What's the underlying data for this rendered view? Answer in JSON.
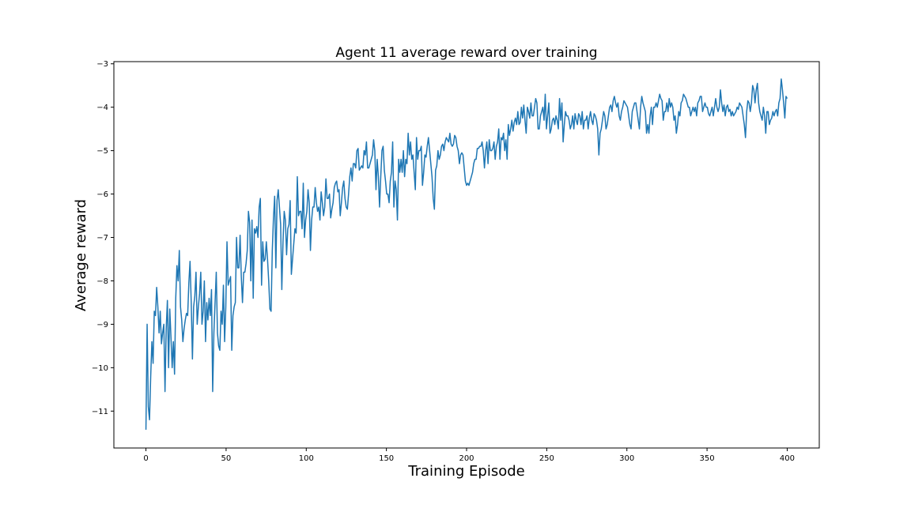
{
  "chart_data": {
    "type": "line",
    "title": "Agent 11 average reward over training",
    "xlabel": "Training Episode",
    "ylabel": "Average reward",
    "xlim": [
      -20,
      420
    ],
    "ylim": [
      -11.85,
      -2.95
    ],
    "xticks": [
      0,
      50,
      100,
      150,
      200,
      250,
      300,
      350,
      400
    ],
    "yticks": [
      -11,
      -10,
      -9,
      -8,
      -7,
      -6,
      -5,
      -4,
      -3
    ],
    "xtick_labels": [
      "0",
      "50",
      "100",
      "150",
      "200",
      "250",
      "300",
      "350",
      "400"
    ],
    "ytick_labels": [
      "−11",
      "−10",
      "−9",
      "−8",
      "−7",
      "−6",
      "−5",
      "−4",
      "−3"
    ],
    "grid": false,
    "color": "#1f77b4",
    "series": [
      {
        "values": [
          -11.43,
          -9.0,
          -10.9,
          -11.2,
          -10.2,
          -9.4,
          -9.9,
          -8.7,
          -8.8,
          -8.15,
          -8.6,
          -9.2,
          -8.7,
          -9.45,
          -9.2,
          -9.0,
          -10.55,
          -9.1,
          -8.45,
          -10.0,
          -8.65,
          -9.3,
          -10.0,
          -9.4,
          -10.15,
          -8.4,
          -7.65,
          -8.0,
          -7.3,
          -8.6,
          -8.9,
          -9.4,
          -9.1,
          -8.9,
          -8.75,
          -8.8,
          -8.05,
          -7.55,
          -8.5,
          -9.8,
          -8.6,
          -8.35,
          -7.8,
          -9.0,
          -8.6,
          -8.3,
          -7.8,
          -9.0,
          -8.7,
          -8.0,
          -9.4,
          -8.5,
          -8.9,
          -8.4,
          -8.8,
          -8.2,
          -10.55,
          -9.2,
          -8.5,
          -7.8,
          -9.2,
          -9.5,
          -9.6,
          -8.7,
          -9.0,
          -8.1,
          -9.4,
          -8.6,
          -7.1,
          -8.1,
          -8.0,
          -7.9,
          -9.6,
          -8.8,
          -8.6,
          -8.5,
          -7.0,
          -7.7,
          -7.7,
          -6.95,
          -7.9,
          -8.5,
          -7.8,
          -7.8,
          -7.6,
          -7.3,
          -6.4,
          -6.65,
          -8.0,
          -6.6,
          -8.4,
          -6.8,
          -6.9,
          -6.75,
          -7.0,
          -6.3,
          -6.1,
          -8.1,
          -7.1,
          -7.55,
          -7.5,
          -7.1,
          -7.5,
          -8.0,
          -8.65,
          -8.7,
          -7.3,
          -6.55,
          -6.05,
          -7.7,
          -6.15,
          -5.9,
          -6.3,
          -6.7,
          -8.2,
          -7.1,
          -6.4,
          -6.6,
          -7.4,
          -6.8,
          -6.7,
          -6.15,
          -7.85,
          -7.5,
          -7.15,
          -6.8,
          -6.9,
          -5.6,
          -6.5,
          -6.4,
          -6.4,
          -6.8,
          -5.75,
          -7.0,
          -6.6,
          -6.4,
          -5.9,
          -6.2,
          -7.3,
          -6.6,
          -6.3,
          -6.3,
          -5.85,
          -6.2,
          -6.4,
          -6.3,
          -6.6,
          -5.95,
          -6.2,
          -6.5,
          -6.3,
          -5.65,
          -6.1,
          -6.1,
          -6.0,
          -6.55,
          -6.35,
          -6.2,
          -5.85,
          -5.75,
          -5.7,
          -5.95,
          -5.9,
          -6.5,
          -6.2,
          -5.85,
          -5.7,
          -6.1,
          -6.3,
          -6.35,
          -6.0,
          -5.6,
          -5.4,
          -5.7,
          -5.3,
          -5.3,
          -5.4,
          -5.0,
          -4.95,
          -5.45,
          -5.4,
          -5.35,
          -5.4,
          -5.0,
          -5.1,
          -4.8,
          -5.4,
          -5.4,
          -5.3,
          -5.2,
          -5.1,
          -4.75,
          -5.0,
          -5.9,
          -5.2,
          -5.6,
          -6.3,
          -5.6,
          -5.0,
          -4.9,
          -5.45,
          -5.7,
          -6.0,
          -6.0,
          -6.2,
          -5.7,
          -5.5,
          -4.8,
          -6.3,
          -5.7,
          -5.9,
          -6.6,
          -5.2,
          -5.5,
          -5.2,
          -5.5,
          -5.0,
          -5.6,
          -5.2,
          -5.3,
          -4.6,
          -5.1,
          -4.8,
          -5.2,
          -5.1,
          -5.5,
          -5.9,
          -4.7,
          -5.2,
          -5.0,
          -5.0,
          -4.9,
          -5.8,
          -5.5,
          -5.1,
          -5.15,
          -4.9,
          -4.7,
          -5.0,
          -5.3,
          -5.6,
          -6.1,
          -6.35,
          -5.45,
          -5.35,
          -5.0,
          -5.2,
          -5.1,
          -4.9,
          -4.85,
          -5.0,
          -4.8,
          -4.7,
          -4.75,
          -4.8,
          -4.6,
          -4.85,
          -4.9,
          -4.85,
          -4.65,
          -4.7,
          -4.9,
          -5.0,
          -5.3,
          -5.1,
          -5.05,
          -5.1,
          -5.4,
          -5.7,
          -5.8,
          -5.75,
          -5.8,
          -5.7,
          -5.6,
          -5.5,
          -5.3,
          -5.2,
          -5.2,
          -4.95,
          -4.95,
          -4.9,
          -4.9,
          -4.8,
          -5.0,
          -5.4,
          -5.0,
          -4.8,
          -5.3,
          -4.75,
          -5.0,
          -5.0,
          -4.95,
          -4.8,
          -5.2,
          -4.9,
          -4.8,
          -4.5,
          -5.2,
          -4.7,
          -4.75,
          -4.6,
          -5.0,
          -4.75,
          -5.2,
          -4.4,
          -4.65,
          -4.5,
          -4.3,
          -4.55,
          -4.35,
          -4.25,
          -4.4,
          -4.1,
          -4.4,
          -4.35,
          -4.0,
          -4.25,
          -3.95,
          -4.3,
          -4.6,
          -4.0,
          -4.1,
          -4.25,
          -3.9,
          -4.2,
          -4.2,
          -4.0,
          -3.8,
          -3.9,
          -4.5,
          -4.5,
          -4.2,
          -4.1,
          -4.0,
          -4.3,
          -3.7,
          -4.5,
          -4.2,
          -3.9,
          -4.6,
          -4.5,
          -4.3,
          -4.25,
          -4.4,
          -4.2,
          -4.3,
          -4.5,
          -3.8,
          -4.3,
          -3.9,
          -4.8,
          -4.4,
          -4.1,
          -4.2,
          -4.2,
          -4.3,
          -4.5,
          -4.4,
          -4.2,
          -4.5,
          -4.15,
          -4.3,
          -4.4,
          -4.15,
          -4.2,
          -4.4,
          -4.1,
          -4.5,
          -4.3,
          -4.3,
          -4.2,
          -4.5,
          -4.25,
          -4.1,
          -4.3,
          -4.4,
          -4.15,
          -4.2,
          -4.3,
          -4.5,
          -5.1,
          -4.6,
          -4.5,
          -4.3,
          -4.1,
          -4.2,
          -4.5,
          -4.4,
          -4.2,
          -4.0,
          -3.95,
          -4.1,
          -3.85,
          -3.75,
          -3.9,
          -4.0,
          -3.9,
          -4.2,
          -4.3,
          -4.1,
          -4.0,
          -3.85,
          -3.9,
          -3.95,
          -4.0,
          -4.2,
          -4.4,
          -4.5,
          -4.1,
          -4.0,
          -3.9,
          -3.9,
          -4.1,
          -4.3,
          -4.5,
          -4.0,
          -3.75,
          -3.9,
          -4.0,
          -4.1,
          -4.6,
          -4.4,
          -4.6,
          -4.2,
          -4.0,
          -4.4,
          -4.0,
          -4.0,
          -3.9,
          -4.0,
          -3.85,
          -3.7,
          -3.8,
          -3.85,
          -4.3,
          -4.1,
          -4.1,
          -3.9,
          -4.1,
          -3.8,
          -4.0,
          -3.9,
          -4.0,
          -4.3,
          -4.2,
          -4.6,
          -4.4,
          -4.1,
          -4.2,
          -3.9,
          -3.85,
          -3.7,
          -3.75,
          -3.8,
          -3.9,
          -4.0,
          -4.0,
          -4.2,
          -4.1,
          -4.0,
          -4.1,
          -4.0,
          -4.2,
          -3.9,
          -3.85,
          -3.75,
          -3.75,
          -4.1,
          -4.0,
          -3.9,
          -4.0,
          -4.0,
          -4.15,
          -4.2,
          -4.1,
          -4.0,
          -4.2,
          -4.0,
          -3.8,
          -4.0,
          -4.1,
          -4.0,
          -3.6,
          -3.9,
          -4.1,
          -3.95,
          -4.2,
          -4.0,
          -3.95,
          -4.1,
          -4.05,
          -4.2,
          -4.1,
          -4.2,
          -4.15,
          -4.1,
          -4.0,
          -4.05,
          -3.9,
          -3.95,
          -4.0,
          -4.2,
          -4.4,
          -4.7,
          -4.1,
          -3.85,
          -3.9,
          -4.1,
          -3.9,
          -3.5,
          -3.6,
          -3.9,
          -3.6,
          -3.45,
          -3.9,
          -4.1,
          -4.2,
          -4.3,
          -4.0,
          -4.2,
          -4.6,
          -4.1,
          -4.1,
          -4.4,
          -4.3,
          -4.25,
          -4.1,
          -4.2,
          -4.1,
          -4.05,
          -4.2,
          -3.9,
          -3.8,
          -3.35,
          -3.6,
          -3.9,
          -4.25,
          -3.75,
          -3.8
        ],
        "x_start": 0,
        "x_end": 400
      }
    ]
  }
}
